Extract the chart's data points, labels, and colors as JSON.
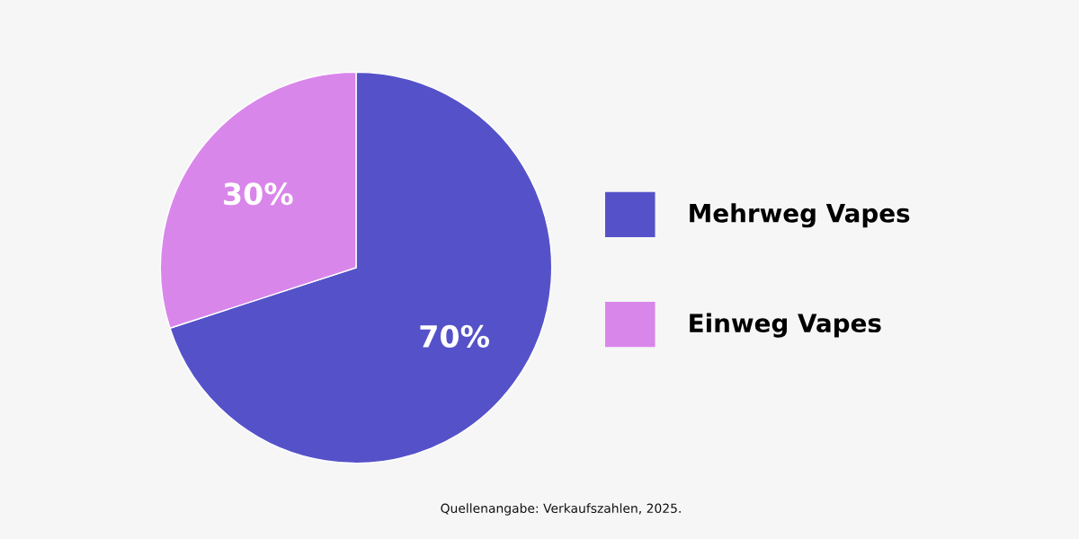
{
  "chart_data": {
    "type": "pie",
    "categories": [
      "Mehrweg Vapes",
      "Einweg Vapes"
    ],
    "values": [
      70,
      30
    ],
    "colors": [
      "#5552c9",
      "#d986ea"
    ],
    "value_labels": [
      "70%",
      "30%"
    ],
    "legend": "right",
    "annotations": [
      "Quellenangabe: Verkaufszahlen, 2025."
    ]
  }
}
